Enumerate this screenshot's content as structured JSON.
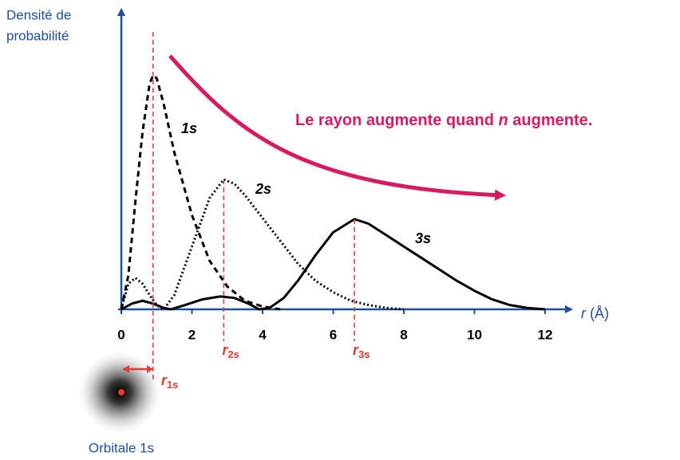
{
  "chart_data": {
    "type": "line",
    "ylabel": [
      "Densité de",
      "probabilité"
    ],
    "xlabel": [
      "r",
      "(Å)"
    ],
    "annotation": [
      "Le rayon augmente quand ",
      "n",
      " augmente."
    ],
    "caption": "Orbitale 1s",
    "xlim": [
      0,
      12
    ],
    "xticks": [
      0,
      2,
      4,
      6,
      8,
      10,
      12
    ],
    "ylim": [
      0,
      100
    ],
    "series": [
      {
        "name": "1s",
        "color": "#000000",
        "style": "dashed",
        "x": [
          0,
          0.2,
          0.4,
          0.6,
          0.8,
          0.9,
          1.0,
          1.2,
          1.5,
          2,
          2.5,
          3,
          3.5,
          4,
          4.5
        ],
        "values": [
          0,
          12,
          38,
          62,
          79,
          82,
          81,
          72,
          55,
          33,
          17,
          8,
          3,
          1,
          0
        ]
      },
      {
        "name": "2s",
        "color": "#000000",
        "style": "dotted",
        "x": [
          0,
          0.2,
          0.4,
          0.6,
          0.8,
          1.0,
          1.2,
          1.5,
          2,
          2.5,
          2.9,
          3.2,
          3.5,
          4,
          4.5,
          5,
          5.5,
          6,
          6.5,
          7,
          7.5,
          8
        ],
        "values": [
          0,
          9,
          11,
          9,
          5,
          1.5,
          0,
          5,
          22,
          39,
          45.5,
          44,
          40,
          32,
          24,
          16,
          10,
          6,
          3,
          1.5,
          0.5,
          0
        ]
      },
      {
        "name": "3s",
        "color": "#000000",
        "style": "solid",
        "x": [
          0,
          0.3,
          0.6,
          0.9,
          1.2,
          1.4,
          1.8,
          2.3,
          2.8,
          3.2,
          3.6,
          3.9,
          4.2,
          4.6,
          5,
          5.5,
          6,
          6.6,
          7,
          7.5,
          8,
          8.5,
          9,
          9.5,
          10,
          10.5,
          11,
          11.5,
          12
        ],
        "values": [
          0,
          2,
          3,
          2,
          0.5,
          0,
          1.5,
          3.5,
          4.5,
          4,
          2,
          0,
          0.5,
          4,
          10,
          19,
          27,
          31.6,
          30,
          26,
          22,
          18,
          14,
          10,
          6.5,
          3.5,
          1.5,
          0.5,
          0
        ]
      }
    ],
    "radii": [
      {
        "symbol": "r",
        "subscript": "1s",
        "value": 0.9
      },
      {
        "symbol": "r",
        "subscript": "2s",
        "value": 2.9
      },
      {
        "symbol": "r",
        "subscript": "3s",
        "value": 6.6
      }
    ]
  }
}
